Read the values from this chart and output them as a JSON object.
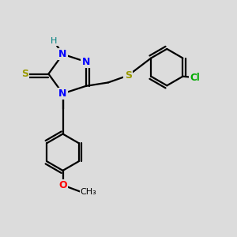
{
  "bg_color": "#dcdcdc",
  "bond_color": "#000000",
  "bond_width": 1.6,
  "atom_colors": {
    "N": "#0000ff",
    "H": "#008080",
    "S": "#999900",
    "Cl": "#00aa00",
    "O": "#ff0000",
    "C": "#000000"
  },
  "figsize": [
    3.0,
    3.0
  ],
  "dpi": 100
}
